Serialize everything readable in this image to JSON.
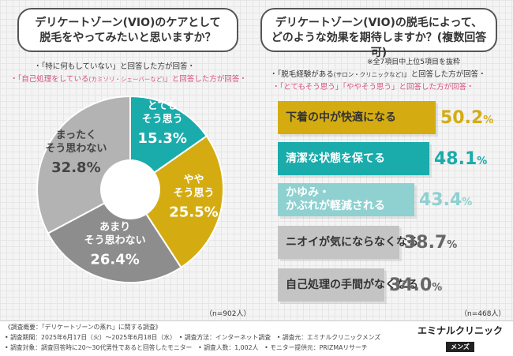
{
  "left": {
    "question_line1": "デリケートゾーン(VIO)のケアとして",
    "question_line2": "脱毛をやってみたいと思いますか？",
    "note1": "・「特に何もしていない」と回答した方が回答・",
    "note2_a": "・「自己処理をしている",
    "note2_b": "(カミソリ・シェーバーなど)",
    "note2_c": "」と回答した方が回答・",
    "n": "（n=902人）"
  },
  "right": {
    "question_line1": "デリケートゾーン(VIO)の脱毛によって、",
    "question_line2": "どのような効果を期待しますか？(複数回答可)",
    "note0": "※全7項目中上位5項目を抜粋",
    "note1_a": "・「脱毛経験がある",
    "note1_b": "(サロン・クリニックなど)",
    "note1_c": "」と回答した方が回答・",
    "note2": "・「とてもそう思う」「ややそう思う」と回答した方が回答・",
    "n": "（n=468人）"
  },
  "chart_data": [
    {
      "type": "pie",
      "categories": [
        "とてもそう思う",
        "ややそう思う",
        "あまりそう思わない",
        "まったくそう思わない"
      ],
      "values": [
        15.3,
        25.5,
        26.4,
        32.8
      ],
      "label_lines": [
        [
          "とても",
          "そう思う"
        ],
        [
          "やや",
          "そう思う"
        ],
        [
          "あまり",
          "そう思わない"
        ],
        [
          "まったく",
          "そう思わない"
        ]
      ],
      "value_labels": [
        "15.3%",
        "25.5%",
        "26.4%",
        "32.8%"
      ],
      "colors": [
        "#1aabab",
        "#d4ac12",
        "#8d8d8d",
        "#b3b3b3"
      ],
      "label_colors": [
        "#ffffff",
        "#ffffff",
        "#ffffff",
        "#444444"
      ]
    },
    {
      "type": "bar",
      "orientation": "horizontal",
      "categories": [
        "下着の中が快適になる",
        "清潔な状態を保てる",
        "かゆみ・かぶれが軽減される",
        "ニオイが気にならなくなる",
        "自己処理の手間がなくなる"
      ],
      "label_lines": [
        [
          "下着の中が快適になる"
        ],
        [
          "清潔な状態を保てる"
        ],
        [
          "かゆみ・",
          "かぶれが軽減される"
        ],
        [
          "ニオイが気にならなくなる"
        ],
        [
          "自己処理の手間がなくなる"
        ]
      ],
      "values": [
        50.2,
        48.1,
        43.4,
        38.7,
        34.0
      ],
      "value_labels": [
        "50.2",
        "48.1",
        "43.4",
        "38.7",
        "34.0"
      ],
      "unit": "%",
      "colors": [
        "#d4ac12",
        "#1aabab",
        "#8fd0d0",
        "#c4c4c4",
        "#c4c4c4"
      ],
      "value_colors": [
        "#d4ac12",
        "#1aabab",
        "#8fd0d0",
        "#666666",
        "#666666"
      ],
      "label_colors": [
        "#333333",
        "#ffffff",
        "#ffffff",
        "#333333",
        "#333333"
      ]
    }
  ],
  "footer": {
    "line1": "《調査概要：「デリケートゾーンの蒸れ」に関する調査》",
    "line2": "• 調査期間：2025年6月17日（火）～2025年6月18日（水）　• 調査方法：インターネット調査　• 調査元：エミナルクリニックメンズ",
    "line3": "• 調査対象：調査回答時に20～30代男性であると回答したモニター　• 調査人数：1,002人　• モニター提供元：PRIZMAリサーチ",
    "logo_main": "エミナルクリニック",
    "logo_sub": "メンズ"
  }
}
